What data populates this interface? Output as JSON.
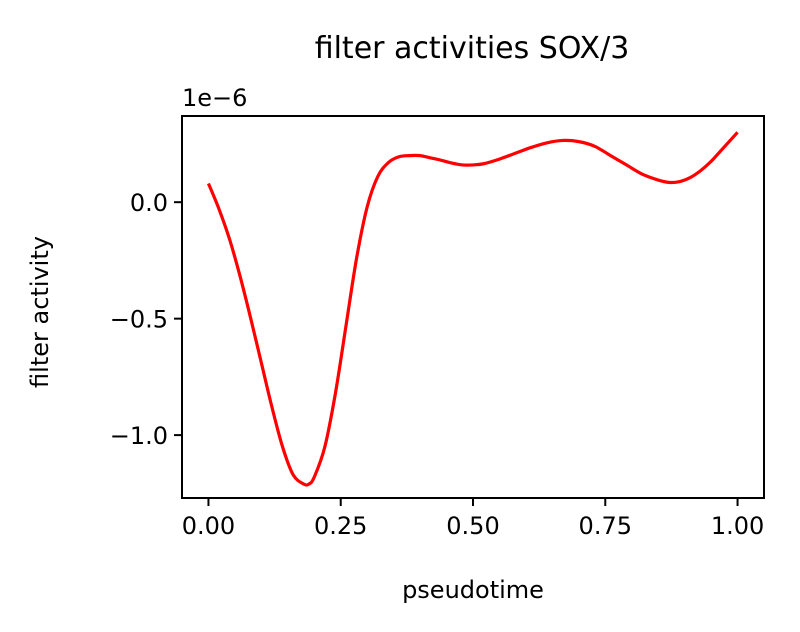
{
  "chart_data": {
    "type": "line",
    "title": "filter activities SOX/3",
    "xlabel": "pseudotime",
    "ylabel": "filter activity",
    "y_offset_label": "1e−6",
    "xlim": [
      -0.05,
      1.05
    ],
    "ylim": [
      -1.27,
      0.37
    ],
    "grid": false,
    "x_ticks": [
      {
        "value": 0.0,
        "label": "0.00"
      },
      {
        "value": 0.25,
        "label": "0.25"
      },
      {
        "value": 0.5,
        "label": "0.50"
      },
      {
        "value": 0.75,
        "label": "0.75"
      },
      {
        "value": 1.0,
        "label": "1.00"
      }
    ],
    "y_ticks": [
      {
        "value": 0.0,
        "label": "0.0"
      },
      {
        "value": -0.5,
        "label": "−0.5"
      },
      {
        "value": -1.0,
        "label": "−1.0"
      }
    ],
    "series": [
      {
        "color": "#ff0000",
        "x": [
          0.0,
          0.02,
          0.04,
          0.06,
          0.08,
          0.1,
          0.12,
          0.14,
          0.16,
          0.18,
          0.19,
          0.2,
          0.22,
          0.24,
          0.26,
          0.28,
          0.3,
          0.32,
          0.34,
          0.36,
          0.38,
          0.4,
          0.42,
          0.44,
          0.46,
          0.48,
          0.5,
          0.52,
          0.55,
          0.58,
          0.61,
          0.64,
          0.67,
          0.7,
          0.73,
          0.76,
          0.79,
          0.82,
          0.85,
          0.87,
          0.89,
          0.91,
          0.93,
          0.95,
          0.97,
          1.0
        ],
        "values": [
          0.08,
          -0.03,
          -0.16,
          -0.32,
          -0.5,
          -0.69,
          -0.88,
          -1.05,
          -1.17,
          -1.21,
          -1.21,
          -1.18,
          -1.05,
          -0.82,
          -0.53,
          -0.24,
          -0.02,
          0.11,
          0.17,
          0.195,
          0.2,
          0.2,
          0.19,
          0.18,
          0.168,
          0.16,
          0.16,
          0.165,
          0.185,
          0.21,
          0.235,
          0.255,
          0.265,
          0.26,
          0.24,
          0.2,
          0.16,
          0.12,
          0.095,
          0.085,
          0.088,
          0.105,
          0.135,
          0.175,
          0.225,
          0.3
        ]
      }
    ]
  }
}
